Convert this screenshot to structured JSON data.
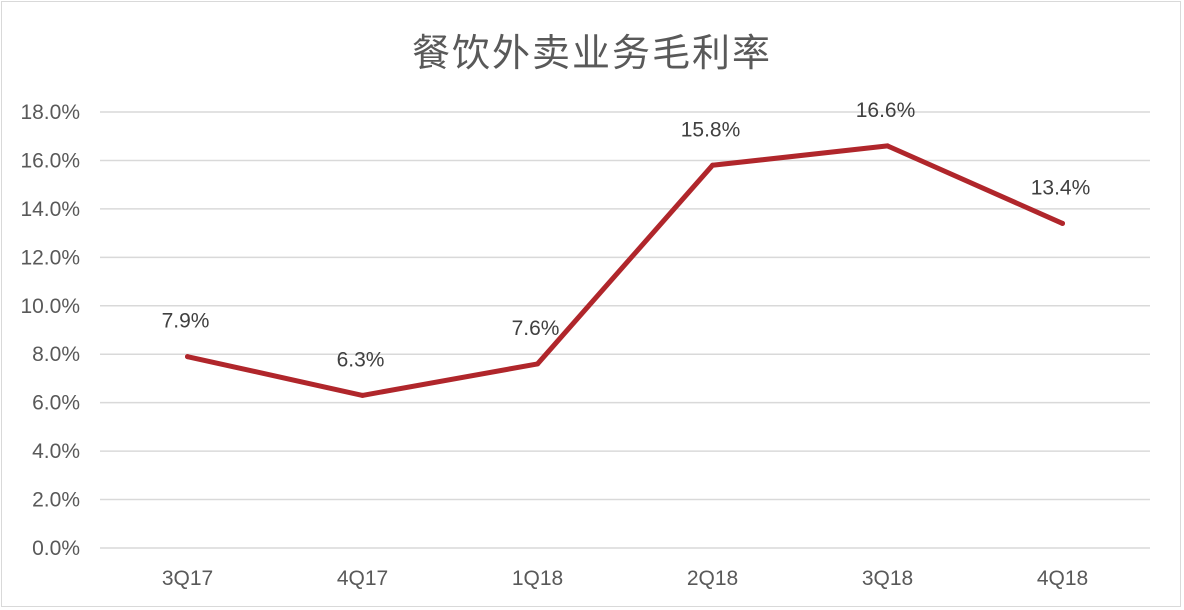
{
  "chart_data": {
    "type": "line",
    "title": "餐饮外卖业务毛利率",
    "xlabel": "",
    "ylabel": "",
    "categories": [
      "3Q17",
      "4Q17",
      "1Q18",
      "2Q18",
      "3Q18",
      "4Q18"
    ],
    "series": [
      {
        "values": [
          7.9,
          6.3,
          7.6,
          15.8,
          16.6,
          13.4
        ],
        "data_labels": [
          "7.9%",
          "6.3%",
          "7.6%",
          "15.8%",
          "16.6%",
          "13.4%"
        ],
        "color": "#b0262b"
      }
    ],
    "y_ticks": [
      "0.0%",
      "2.0%",
      "4.0%",
      "6.0%",
      "8.0%",
      "10.0%",
      "12.0%",
      "14.0%",
      "16.0%",
      "18.0%"
    ],
    "ylim": [
      0,
      18
    ],
    "grid": true,
    "legend": "none",
    "colors": {
      "line": "#b0262b",
      "grid": "#d9d9d9",
      "text": "#595959"
    }
  }
}
